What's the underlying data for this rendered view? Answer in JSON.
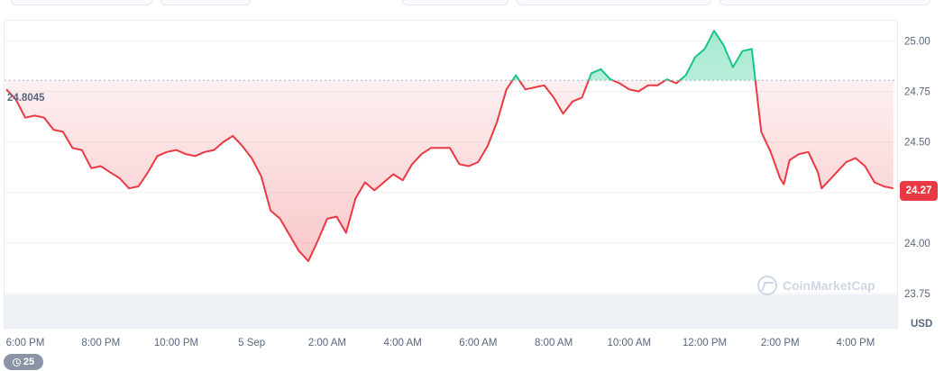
{
  "chart_data": {
    "type": "line",
    "title": "",
    "xlabel": "",
    "ylabel": "USD",
    "reference_price": 24.8045,
    "current_price": "24.27",
    "reference_label": "24.8045",
    "ylim": [
      23.58,
      25.1
    ],
    "y_ticks": [
      23.75,
      24.0,
      24.25,
      24.5,
      24.75,
      25.0
    ],
    "y_tick_labels": [
      "23.75",
      "24.00",
      "",
      "24.50",
      "24.75",
      "25.00"
    ],
    "x_ticks": [
      {
        "t": 0.5,
        "label": "6:00 PM"
      },
      {
        "t": 2.5,
        "label": "8:00 PM"
      },
      {
        "t": 4.5,
        "label": "10:00 PM"
      },
      {
        "t": 6.5,
        "label": "5 Sep"
      },
      {
        "t": 8.5,
        "label": "2:00 AM"
      },
      {
        "t": 10.5,
        "label": "4:00 AM"
      },
      {
        "t": 12.5,
        "label": "6:00 AM"
      },
      {
        "t": 14.5,
        "label": "8:00 AM"
      },
      {
        "t": 16.5,
        "label": "10:00 AM"
      },
      {
        "t": 18.5,
        "label": "12:00 PM"
      },
      {
        "t": 20.5,
        "label": "2:00 PM"
      },
      {
        "t": 22.5,
        "label": "4:00 PM"
      }
    ],
    "x_range": [
      -0.05,
      23.6
    ],
    "x": [
      0,
      0.25,
      0.5,
      0.75,
      1.0,
      1.25,
      1.5,
      1.75,
      2.0,
      2.25,
      2.5,
      2.75,
      3.0,
      3.25,
      3.5,
      3.75,
      4.0,
      4.25,
      4.5,
      4.75,
      5.0,
      5.25,
      5.5,
      5.75,
      6.0,
      6.25,
      6.5,
      6.75,
      7.0,
      7.25,
      7.5,
      7.75,
      8.0,
      8.25,
      8.5,
      8.75,
      9.0,
      9.25,
      9.5,
      9.75,
      10.0,
      10.25,
      10.5,
      10.75,
      11.0,
      11.25,
      11.5,
      11.75,
      12.0,
      12.25,
      12.5,
      12.75,
      13.0,
      13.25,
      13.5,
      13.75,
      14.0,
      14.25,
      14.5,
      14.75,
      15.0,
      15.25,
      15.5,
      15.75,
      16.0,
      16.25,
      16.5,
      16.75,
      17.0,
      17.25,
      17.5,
      17.75,
      18.0,
      18.25,
      18.5,
      18.75,
      19.0,
      19.25,
      19.5,
      19.75,
      20.0,
      20.25,
      20.5,
      20.6,
      20.75,
      21.0,
      21.25,
      21.5,
      21.6,
      21.75,
      22.0,
      22.25,
      22.5,
      22.75,
      23.0,
      23.25,
      23.5
    ],
    "series": [
      {
        "values": [
          24.76,
          24.71,
          24.62,
          24.63,
          24.62,
          24.56,
          24.55,
          24.47,
          24.46,
          24.37,
          24.38,
          24.35,
          24.32,
          24.27,
          24.28,
          24.35,
          24.43,
          24.45,
          24.46,
          24.44,
          24.43,
          24.45,
          24.46,
          24.5,
          24.53,
          24.48,
          24.42,
          24.33,
          24.16,
          24.12,
          24.04,
          23.96,
          23.91,
          24.01,
          24.12,
          24.13,
          24.05,
          24.22,
          24.3,
          24.26,
          24.3,
          24.34,
          24.31,
          24.39,
          24.44,
          24.47,
          24.47,
          24.47,
          24.39,
          24.38,
          24.4,
          24.48,
          24.6,
          24.76,
          24.83,
          24.76,
          24.77,
          24.78,
          24.72,
          24.64,
          24.7,
          24.72,
          24.84,
          24.86,
          24.81,
          24.79,
          24.76,
          24.75,
          24.78,
          24.78,
          24.81,
          24.79,
          24.83,
          24.92,
          24.96,
          25.05,
          24.98,
          24.87,
          24.95,
          24.96,
          24.55,
          24.45,
          24.32,
          24.29,
          24.41,
          24.44,
          24.45,
          24.35,
          24.27,
          24.3,
          24.35,
          24.4,
          24.42,
          24.38,
          24.3,
          24.28,
          24.27
        ]
      }
    ],
    "colors": {
      "down": "#ea3943",
      "up": "#16c784",
      "grid": "#eff2f5",
      "axis_text": "#58667e",
      "ref_line": "#a6b0c3"
    }
  },
  "axis": {
    "currency_label": "USD"
  },
  "watermark": {
    "text": "CoinMarketCap"
  },
  "badge": {
    "count": "25",
    "icon": "clock-icon"
  }
}
